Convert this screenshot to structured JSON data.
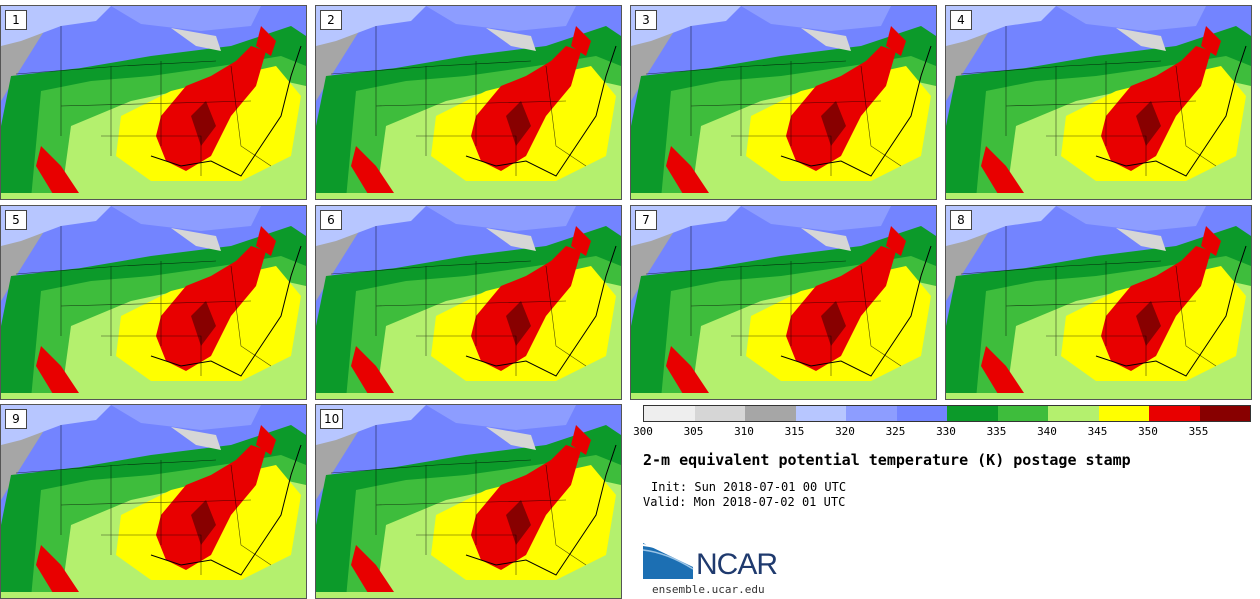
{
  "panels": [
    {
      "label": "1"
    },
    {
      "label": "2"
    },
    {
      "label": "3"
    },
    {
      "label": "4"
    },
    {
      "label": "5"
    },
    {
      "label": "6"
    },
    {
      "label": "7"
    },
    {
      "label": "8"
    },
    {
      "label": "9"
    },
    {
      "label": "10"
    }
  ],
  "colorbar": {
    "colors": [
      "#eeeeee",
      "#d6d6d6",
      "#a6a6a6",
      "#b7c6ff",
      "#8d9dff",
      "#7384ff",
      "#0c9a2a",
      "#3ebd3c",
      "#b4f06e",
      "#ffff00",
      "#e80000",
      "#880000"
    ],
    "ticks": [
      "300",
      "305",
      "310",
      "315",
      "320",
      "325",
      "330",
      "335",
      "340",
      "345",
      "350",
      "355"
    ]
  },
  "title": "2-m equivalent potential temperature (K) postage stamp",
  "init": "Init: Sun 2018-07-01 00 UTC",
  "valid": "Valid: Mon 2018-07-02 01 UTC",
  "logo": {
    "name": "NCAR",
    "url": "ensemble.ucar.edu"
  }
}
